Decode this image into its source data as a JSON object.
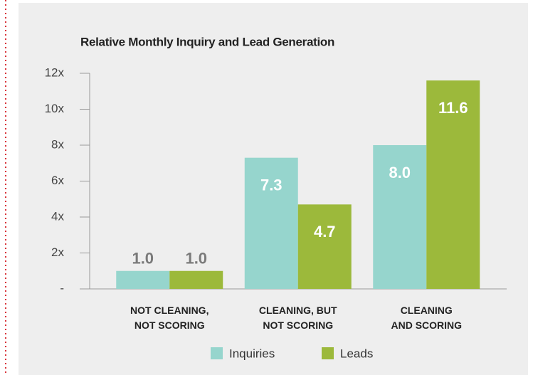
{
  "chart_data": {
    "type": "bar",
    "title": "Relative Monthly Inquiry and Lead Generation",
    "categories": [
      [
        "NOT CLEANING,",
        "NOT SCORING"
      ],
      [
        "CLEANING, BUT",
        "NOT SCORING"
      ],
      [
        "CLEANING",
        "AND SCORING"
      ]
    ],
    "series": [
      {
        "name": "Inquiries",
        "color": "#96d5cd",
        "values": [
          1,
          7.3,
          8
        ],
        "value_labels": [
          "1.0",
          "7.3",
          "8.0"
        ]
      },
      {
        "name": "Leads",
        "color": "#9cb93b",
        "values": [
          1,
          4.7,
          11.6
        ],
        "value_labels": [
          "1.0",
          "4.7",
          "11.6"
        ]
      }
    ],
    "ylim": [
      0,
      12
    ],
    "yticks": [
      {
        "value": 0,
        "label": "-"
      },
      {
        "value": 2,
        "label": "2x"
      },
      {
        "value": 4,
        "label": "4x"
      },
      {
        "value": 6,
        "label": "6x"
      },
      {
        "value": 8,
        "label": "8x"
      },
      {
        "value": 10,
        "label": "10x"
      },
      {
        "value": 12,
        "label": "12x"
      }
    ],
    "legend": "bottom"
  }
}
